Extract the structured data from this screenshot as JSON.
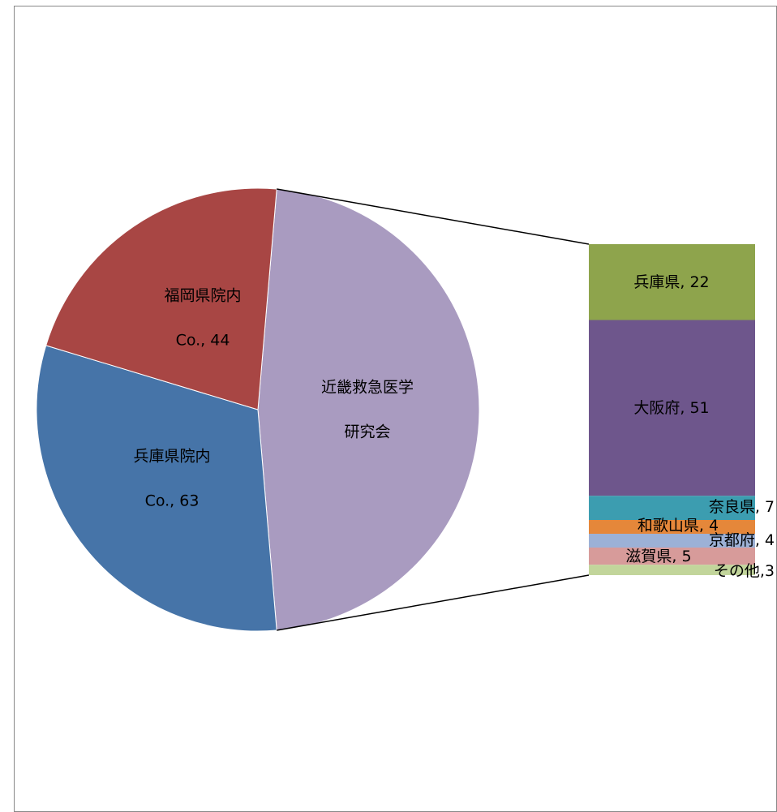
{
  "chart_data": {
    "type": "bar-of-pie",
    "values": [
      96,
      63,
      44
    ],
    "value_labels": [
      "近畿救急医学\n研究会",
      "兵庫県院内\nCo., 63",
      "福岡県院内\nCo., 44"
    ],
    "colors": [
      "#a99bc0",
      "#4674a8",
      "#a84644"
    ],
    "bar": {
      "values": [
        22,
        51,
        7,
        4,
        4,
        5,
        3
      ],
      "value_labels": [
        "兵庫県, 22",
        "大阪府, 51",
        "奈良県, 7",
        "和歌山県, 4",
        "京都府, 4",
        "滋賀県, 5",
        "その他,3"
      ],
      "colors": [
        "#8ea44c",
        "#6e568c",
        "#3c9db0",
        "#e5873a",
        "#9cb1d6",
        "#d79b9a",
        "#c2d59b"
      ]
    }
  }
}
